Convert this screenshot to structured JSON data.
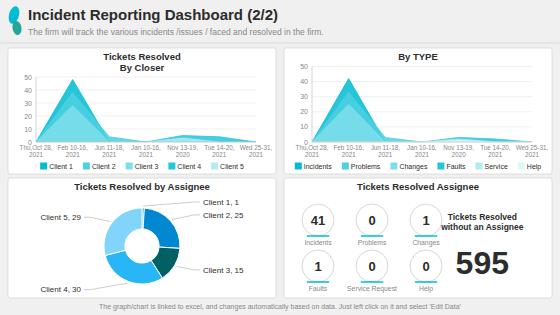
{
  "title": "Incident Reporting Dashboard (2/2)",
  "subtitle": "The firm will track the various incidents /issues / faced and resolved in the firm.",
  "annotations": [
    "The graph/chart is linked to excel, and changes automatically based on data. Just left click on it and select 'Edit Data'"
  ],
  "chart_data": [
    {
      "type": "area",
      "title": "Tickets Resolved\nBy Closer",
      "categories": [
        "Thu,Oct 28,\n2021",
        "Feb 10-16,\n2021",
        "Jun 11-18,\n2021",
        "Jan 10-16,\n2021",
        "Nov 13-19,\n2020",
        "Tue 14-20,\n2021",
        "Wed 25-31,\n2021"
      ],
      "series": [
        {
          "name": "Client 1",
          "color": "#00bcd4",
          "values": [
            0,
            48,
            0,
            0,
            0,
            0,
            0
          ]
        },
        {
          "name": "Client 2",
          "color": "#4dd0e1",
          "values": [
            0,
            38,
            4,
            0,
            0,
            0,
            0
          ]
        },
        {
          "name": "Client 3",
          "color": "#80deea",
          "values": [
            0,
            28,
            0,
            0,
            0,
            0,
            0
          ]
        },
        {
          "name": "Client 4",
          "color": "#26c6da",
          "values": [
            0,
            0,
            0,
            0,
            5,
            4,
            0
          ]
        },
        {
          "name": "Client 5",
          "color": "#b2ebf2",
          "values": [
            0,
            0,
            0,
            0,
            3,
            0,
            0
          ]
        }
      ],
      "ylim": [
        0,
        50
      ],
      "yticks": [
        0,
        10,
        20,
        30,
        40,
        50
      ],
      "grid": true,
      "stacked": false,
      "legend": "bottom"
    },
    {
      "type": "area",
      "title": "By TYPE",
      "categories": [
        "Thu,Oct 28,\n2021",
        "Feb 10-16,\n2021",
        "Jun 11-18,\n2021",
        "Jan 10-16,\n2021",
        "Nov 13-19,\n2020",
        "Tue 14-20,\n2021",
        "Wed 25-31,\n2021"
      ],
      "series": [
        {
          "name": "Incidents",
          "color": "#00bcd4",
          "values": [
            0,
            42,
            0,
            0,
            0,
            0,
            0
          ]
        },
        {
          "name": "Problems",
          "color": "#4dd0e1",
          "values": [
            0,
            33,
            3,
            0,
            0,
            0,
            0
          ]
        },
        {
          "name": "Changes",
          "color": "#80deea",
          "values": [
            0,
            25,
            0,
            0,
            0,
            0,
            0
          ]
        },
        {
          "name": "Faults",
          "color": "#26c6da",
          "values": [
            0,
            0,
            0,
            0,
            3,
            2,
            0
          ]
        },
        {
          "name": "Service",
          "color": "#b2ebf2",
          "values": [
            0,
            0,
            0,
            0,
            2,
            0,
            0
          ]
        },
        {
          "name": "Help",
          "color": "#e0f7fa",
          "values": [
            0,
            0,
            0,
            0,
            1,
            0,
            0
          ]
        }
      ],
      "ylim": [
        0,
        50
      ],
      "yticks": [
        0,
        10,
        20,
        30,
        40,
        50
      ],
      "grid": true,
      "stacked": false,
      "legend": "bottom"
    },
    {
      "type": "donut",
      "title": "Tickets Resolved by Assignee",
      "categories": [
        "Client 1, 1",
        "Client 2, 25",
        "Client 3, 15",
        "Client 4, 30",
        "Client 5, 29"
      ],
      "values": [
        1,
        25,
        15,
        30,
        29
      ],
      "colors": [
        "#00acc1",
        "#0288d1",
        "#006064",
        "#29b6f6",
        "#81d4fa"
      ]
    },
    {
      "type": "kpi",
      "title": "Tickets Resolved Assignee",
      "categories": [
        "Incidents",
        "Problems",
        "Changes",
        "Faults",
        "Service Request",
        "Help"
      ],
      "values": [
        41,
        0,
        1,
        1,
        0,
        0
      ],
      "data_labels": true
    },
    {
      "type": "kpi",
      "categories": [
        "Tickets Resolved\nwithout an Assignee"
      ],
      "values": [
        595
      ],
      "data_labels": true
    }
  ]
}
